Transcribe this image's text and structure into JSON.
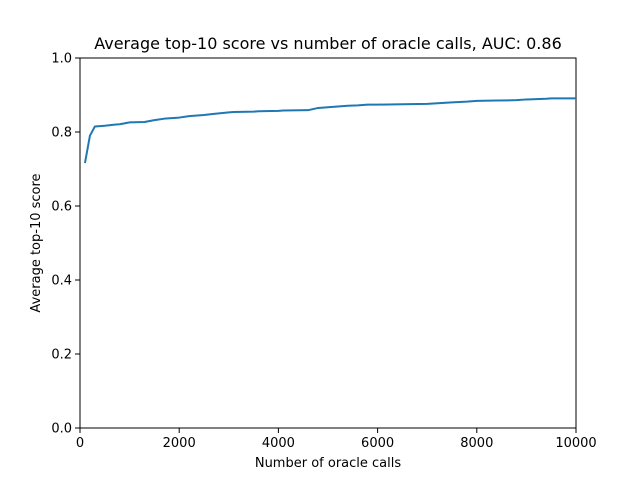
{
  "chart_data": {
    "type": "line",
    "title": "Average top-10 score vs number of oracle calls, AUC: 0.86",
    "xlabel": "Number of oracle calls",
    "ylabel": "Average top-10 score",
    "xlim": [
      0,
      10000
    ],
    "ylim": [
      0.0,
      1.0
    ],
    "xticks": [
      0,
      2000,
      4000,
      6000,
      8000,
      10000
    ],
    "xtick_labels": [
      "0",
      "2000",
      "4000",
      "6000",
      "8000",
      "10000"
    ],
    "yticks": [
      0.0,
      0.2,
      0.4,
      0.6,
      0.8,
      1.0
    ],
    "ytick_labels": [
      "0.0",
      "0.2",
      "0.4",
      "0.6",
      "0.8",
      "1.0"
    ],
    "grid": false,
    "line_color": "#1f77b4",
    "series": [
      {
        "x": [
          100,
          200,
          300,
          500,
          700,
          800,
          1000,
          1300,
          1500,
          1700,
          2000,
          2200,
          2500,
          2700,
          3000,
          3100,
          3500,
          3600,
          4000,
          4100,
          4600,
          4700,
          4800,
          5000,
          5200,
          5400,
          5600,
          5800,
          6000,
          6500,
          7000,
          7500,
          7800,
          8000,
          8400,
          8800,
          9000,
          9200,
          9400,
          9500,
          9800,
          10000
        ],
        "y": [
          0.716,
          0.79,
          0.815,
          0.817,
          0.82,
          0.821,
          0.826,
          0.827,
          0.832,
          0.836,
          0.839,
          0.843,
          0.846,
          0.849,
          0.853,
          0.854,
          0.855,
          0.856,
          0.857,
          0.858,
          0.859,
          0.862,
          0.865,
          0.867,
          0.869,
          0.871,
          0.872,
          0.874,
          0.874,
          0.875,
          0.876,
          0.88,
          0.882,
          0.884,
          0.885,
          0.886,
          0.888,
          0.889,
          0.89,
          0.891,
          0.891,
          0.891
        ]
      }
    ]
  }
}
